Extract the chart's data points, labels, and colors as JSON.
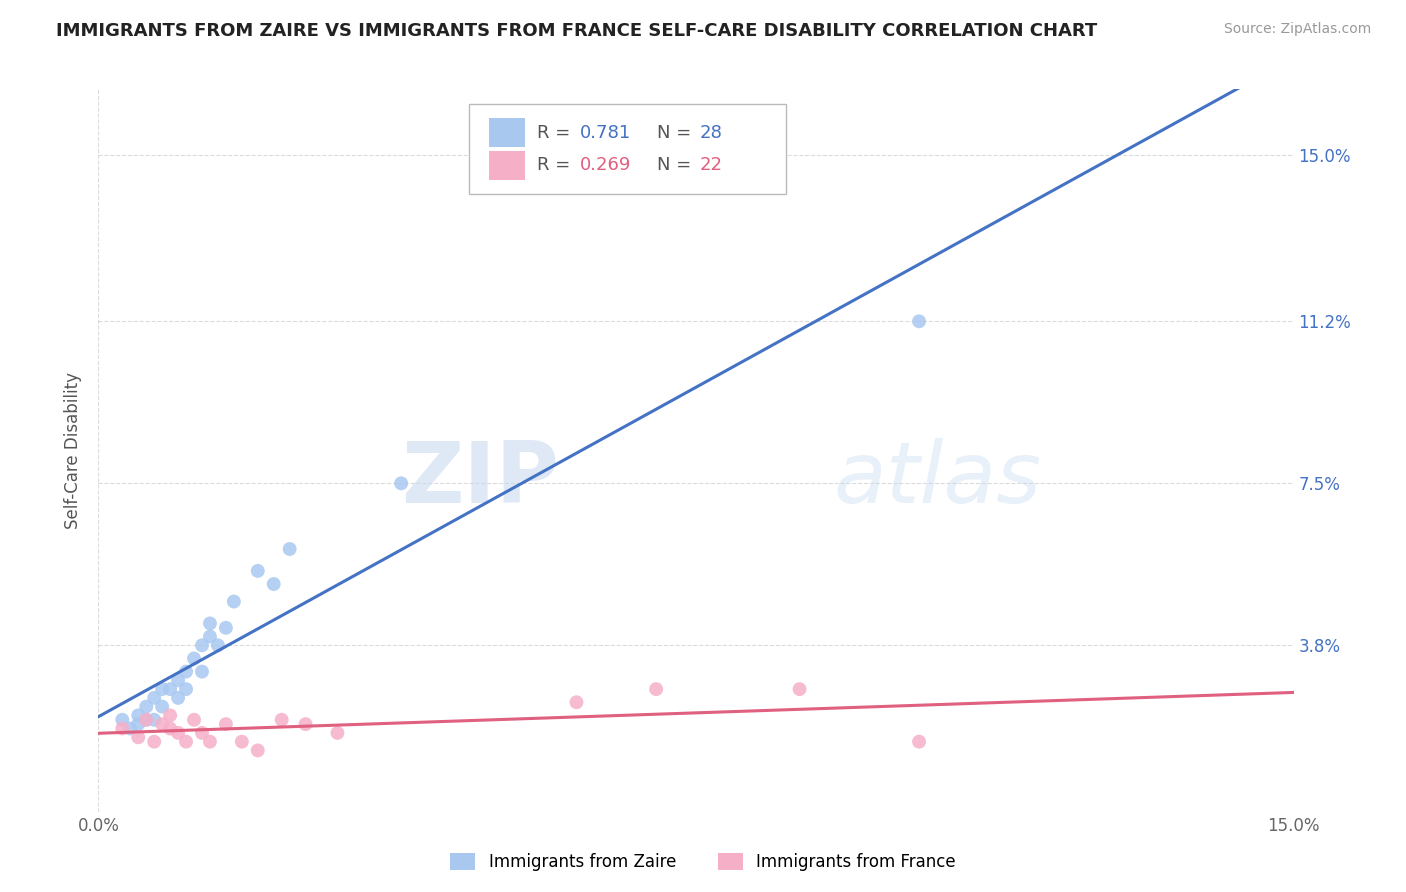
{
  "title": "IMMIGRANTS FROM ZAIRE VS IMMIGRANTS FROM FRANCE SELF-CARE DISABILITY CORRELATION CHART",
  "source": "Source: ZipAtlas.com",
  "ylabel": "Self-Care Disability",
  "xlim": [
    0.0,
    0.15
  ],
  "ylim": [
    0.0,
    0.165
  ],
  "ytick_positions": [
    0.0,
    0.038,
    0.075,
    0.112,
    0.15
  ],
  "ytick_labels": [
    "",
    "3.8%",
    "7.5%",
    "11.2%",
    "15.0%"
  ],
  "zaire_R": 0.781,
  "zaire_N": 28,
  "france_R": 0.269,
  "france_N": 22,
  "zaire_color": "#a8c8f0",
  "france_color": "#f5b0c8",
  "zaire_line_color": "#4472c4",
  "france_line_color": "#e06080",
  "watermark_zip": "ZIP",
  "watermark_atlas": "atlas",
  "zaire_scatter_x": [
    0.003,
    0.004,
    0.005,
    0.005,
    0.006,
    0.006,
    0.007,
    0.007,
    0.008,
    0.008,
    0.009,
    0.01,
    0.01,
    0.011,
    0.011,
    0.012,
    0.013,
    0.013,
    0.014,
    0.014,
    0.015,
    0.016,
    0.017,
    0.02,
    0.022,
    0.024,
    0.038,
    0.103
  ],
  "zaire_scatter_y": [
    0.021,
    0.019,
    0.02,
    0.022,
    0.021,
    0.024,
    0.021,
    0.026,
    0.024,
    0.028,
    0.028,
    0.026,
    0.03,
    0.028,
    0.032,
    0.035,
    0.032,
    0.038,
    0.04,
    0.043,
    0.038,
    0.042,
    0.048,
    0.055,
    0.052,
    0.06,
    0.075,
    0.112
  ],
  "france_scatter_x": [
    0.003,
    0.005,
    0.006,
    0.007,
    0.008,
    0.009,
    0.009,
    0.01,
    0.011,
    0.012,
    0.013,
    0.014,
    0.016,
    0.018,
    0.02,
    0.023,
    0.026,
    0.03,
    0.06,
    0.07,
    0.088,
    0.103
  ],
  "france_scatter_y": [
    0.019,
    0.017,
    0.021,
    0.016,
    0.02,
    0.019,
    0.022,
    0.018,
    0.016,
    0.021,
    0.018,
    0.016,
    0.02,
    0.016,
    0.014,
    0.021,
    0.02,
    0.018,
    0.025,
    0.028,
    0.028,
    0.016
  ],
  "background_color": "#ffffff",
  "grid_color": "#cccccc"
}
